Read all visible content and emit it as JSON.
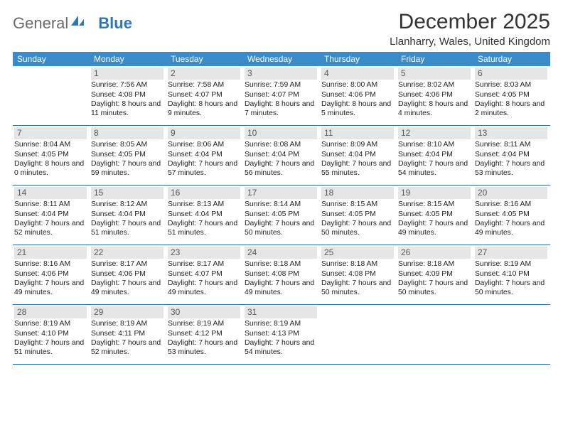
{
  "logo": {
    "text1": "General",
    "text2": "Blue"
  },
  "title": "December 2025",
  "location": "Llanharry, Wales, United Kingdom",
  "colors": {
    "header_bg": "#3b8bc9",
    "header_fg": "#ffffff",
    "daynum_bg": "#e6e6e6",
    "daynum_fg": "#585858",
    "week_border": "#2b6fa5",
    "logo_gray": "#6a6a6a",
    "logo_blue": "#2f78b7"
  },
  "day_names": [
    "Sunday",
    "Monday",
    "Tuesday",
    "Wednesday",
    "Thursday",
    "Friday",
    "Saturday"
  ],
  "weeks": [
    [
      {
        "n": "",
        "sr": "",
        "ss": "",
        "dl": ""
      },
      {
        "n": "1",
        "sr": "7:56 AM",
        "ss": "4:08 PM",
        "dl": "8 hours and 11 minutes."
      },
      {
        "n": "2",
        "sr": "7:58 AM",
        "ss": "4:07 PM",
        "dl": "8 hours and 9 minutes."
      },
      {
        "n": "3",
        "sr": "7:59 AM",
        "ss": "4:07 PM",
        "dl": "8 hours and 7 minutes."
      },
      {
        "n": "4",
        "sr": "8:00 AM",
        "ss": "4:06 PM",
        "dl": "8 hours and 5 minutes."
      },
      {
        "n": "5",
        "sr": "8:02 AM",
        "ss": "4:06 PM",
        "dl": "8 hours and 4 minutes."
      },
      {
        "n": "6",
        "sr": "8:03 AM",
        "ss": "4:05 PM",
        "dl": "8 hours and 2 minutes."
      }
    ],
    [
      {
        "n": "7",
        "sr": "8:04 AM",
        "ss": "4:05 PM",
        "dl": "8 hours and 0 minutes."
      },
      {
        "n": "8",
        "sr": "8:05 AM",
        "ss": "4:05 PM",
        "dl": "7 hours and 59 minutes."
      },
      {
        "n": "9",
        "sr": "8:06 AM",
        "ss": "4:04 PM",
        "dl": "7 hours and 57 minutes."
      },
      {
        "n": "10",
        "sr": "8:08 AM",
        "ss": "4:04 PM",
        "dl": "7 hours and 56 minutes."
      },
      {
        "n": "11",
        "sr": "8:09 AM",
        "ss": "4:04 PM",
        "dl": "7 hours and 55 minutes."
      },
      {
        "n": "12",
        "sr": "8:10 AM",
        "ss": "4:04 PM",
        "dl": "7 hours and 54 minutes."
      },
      {
        "n": "13",
        "sr": "8:11 AM",
        "ss": "4:04 PM",
        "dl": "7 hours and 53 minutes."
      }
    ],
    [
      {
        "n": "14",
        "sr": "8:11 AM",
        "ss": "4:04 PM",
        "dl": "7 hours and 52 minutes."
      },
      {
        "n": "15",
        "sr": "8:12 AM",
        "ss": "4:04 PM",
        "dl": "7 hours and 51 minutes."
      },
      {
        "n": "16",
        "sr": "8:13 AM",
        "ss": "4:04 PM",
        "dl": "7 hours and 51 minutes."
      },
      {
        "n": "17",
        "sr": "8:14 AM",
        "ss": "4:05 PM",
        "dl": "7 hours and 50 minutes."
      },
      {
        "n": "18",
        "sr": "8:15 AM",
        "ss": "4:05 PM",
        "dl": "7 hours and 50 minutes."
      },
      {
        "n": "19",
        "sr": "8:15 AM",
        "ss": "4:05 PM",
        "dl": "7 hours and 49 minutes."
      },
      {
        "n": "20",
        "sr": "8:16 AM",
        "ss": "4:05 PM",
        "dl": "7 hours and 49 minutes."
      }
    ],
    [
      {
        "n": "21",
        "sr": "8:16 AM",
        "ss": "4:06 PM",
        "dl": "7 hours and 49 minutes."
      },
      {
        "n": "22",
        "sr": "8:17 AM",
        "ss": "4:06 PM",
        "dl": "7 hours and 49 minutes."
      },
      {
        "n": "23",
        "sr": "8:17 AM",
        "ss": "4:07 PM",
        "dl": "7 hours and 49 minutes."
      },
      {
        "n": "24",
        "sr": "8:18 AM",
        "ss": "4:08 PM",
        "dl": "7 hours and 49 minutes."
      },
      {
        "n": "25",
        "sr": "8:18 AM",
        "ss": "4:08 PM",
        "dl": "7 hours and 50 minutes."
      },
      {
        "n": "26",
        "sr": "8:18 AM",
        "ss": "4:09 PM",
        "dl": "7 hours and 50 minutes."
      },
      {
        "n": "27",
        "sr": "8:19 AM",
        "ss": "4:10 PM",
        "dl": "7 hours and 50 minutes."
      }
    ],
    [
      {
        "n": "28",
        "sr": "8:19 AM",
        "ss": "4:10 PM",
        "dl": "7 hours and 51 minutes."
      },
      {
        "n": "29",
        "sr": "8:19 AM",
        "ss": "4:11 PM",
        "dl": "7 hours and 52 minutes."
      },
      {
        "n": "30",
        "sr": "8:19 AM",
        "ss": "4:12 PM",
        "dl": "7 hours and 53 minutes."
      },
      {
        "n": "31",
        "sr": "8:19 AM",
        "ss": "4:13 PM",
        "dl": "7 hours and 54 minutes."
      },
      {
        "n": "",
        "sr": "",
        "ss": "",
        "dl": ""
      },
      {
        "n": "",
        "sr": "",
        "ss": "",
        "dl": ""
      },
      {
        "n": "",
        "sr": "",
        "ss": "",
        "dl": ""
      }
    ]
  ]
}
